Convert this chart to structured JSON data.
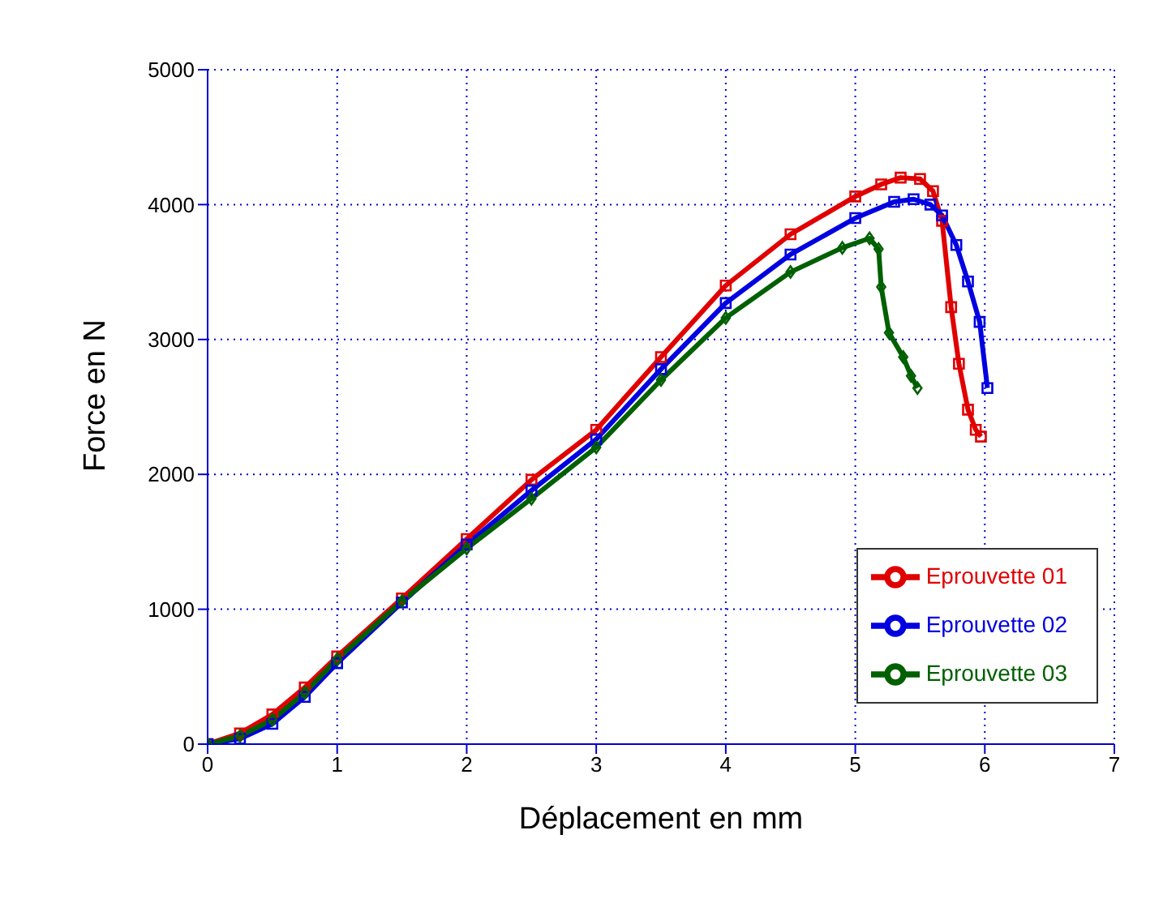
{
  "chart_data": {
    "type": "line",
    "xlabel": "Déplacement en mm",
    "ylabel": "Force en N",
    "xlim": [
      0,
      7
    ],
    "ylim": [
      0,
      5000
    ],
    "xticks": [
      0,
      1,
      2,
      3,
      4,
      5,
      6,
      7
    ],
    "yticks": [
      0,
      1000,
      2000,
      3000,
      4000,
      5000
    ],
    "grid": true,
    "legend": "bottom right",
    "line_style": "solid",
    "series": [
      {
        "name": "Eprouvette 01",
        "color": "#e00000",
        "marker": "square",
        "x": [
          0,
          0.25,
          0.5,
          0.75,
          1,
          1.5,
          2,
          2.5,
          3,
          3.5,
          4,
          4.5,
          5,
          5.2,
          5.35,
          5.5,
          5.6,
          5.67,
          5.74,
          5.8,
          5.87,
          5.93,
          5.97
        ],
        "values": [
          0,
          80,
          220,
          420,
          650,
          1080,
          1520,
          1960,
          2330,
          2870,
          3400,
          3780,
          4060,
          4150,
          4200,
          4190,
          4100,
          3880,
          3240,
          2820,
          2480,
          2330,
          2280
        ]
      },
      {
        "name": "Eprouvette 02",
        "color": "#0000e0",
        "marker": "square",
        "x": [
          0,
          0.25,
          0.5,
          0.75,
          1,
          1.5,
          2,
          2.5,
          3,
          3.5,
          4,
          4.5,
          5,
          5.3,
          5.45,
          5.58,
          5.67,
          5.78,
          5.87,
          5.96,
          6.02
        ],
        "values": [
          0,
          40,
          150,
          350,
          600,
          1050,
          1480,
          1880,
          2260,
          2780,
          3270,
          3630,
          3900,
          4020,
          4040,
          4000,
          3920,
          3700,
          3430,
          3130,
          2640
        ]
      },
      {
        "name": "Eprouvette 03",
        "color": "#006000",
        "marker": "diamond",
        "x": [
          0,
          0.25,
          0.5,
          0.75,
          1,
          1.5,
          2,
          2.5,
          3,
          3.5,
          4,
          4.5,
          4.9,
          5.11,
          5.18,
          5.2,
          5.26,
          5.37,
          5.43,
          5.48
        ],
        "values": [
          0,
          60,
          180,
          380,
          630,
          1060,
          1450,
          1820,
          2200,
          2700,
          3160,
          3500,
          3680,
          3750,
          3670,
          3390,
          3050,
          2870,
          2730,
          2640
        ]
      }
    ]
  }
}
